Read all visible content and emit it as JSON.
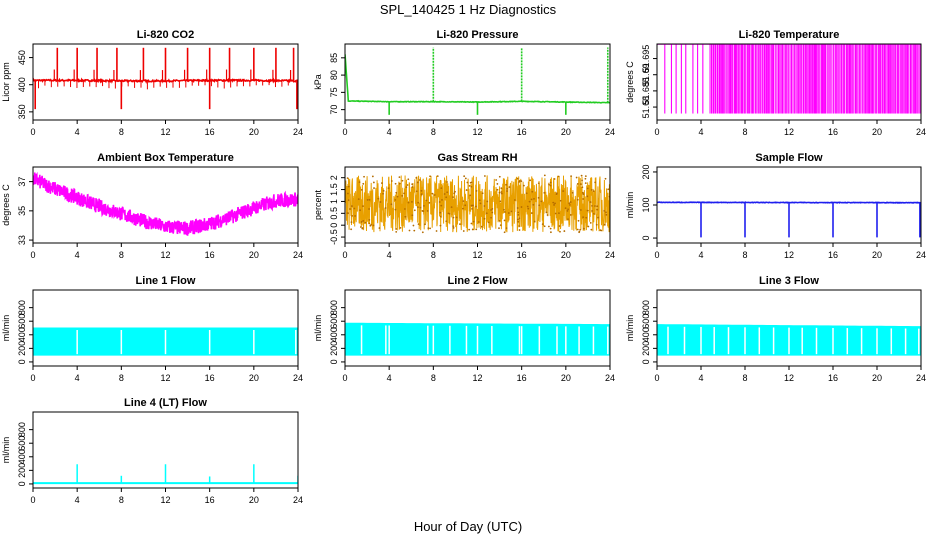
{
  "figure": {
    "title": "SPL_140425  1 Hz Diagnostics",
    "xlabel": "Hour of Day (UTC)"
  },
  "chart_data": [
    {
      "type": "line",
      "title": "Li-820 CO2",
      "xlabel": "",
      "ylabel": "Licor ppm",
      "color": "#ee0000",
      "xlim": [
        0,
        24
      ],
      "ylim": [
        335,
        475
      ],
      "xticks": [
        0,
        4,
        8,
        12,
        16,
        20,
        24
      ],
      "yticks": [
        350,
        400,
        450
      ],
      "series": [
        {
          "x": [
            0,
            4,
            8,
            12,
            16,
            20,
            24
          ],
          "y": [
            408,
            408,
            407,
            407,
            408,
            408,
            407
          ],
          "spikes_up_x": [
            2.2,
            4,
            5.8,
            7.6,
            10,
            12,
            14,
            16,
            17.8,
            20,
            22,
            23.6
          ],
          "spike_up_y": 468,
          "spikes_down_x": [
            0.2,
            8,
            16,
            23.9
          ],
          "spike_down_y": 355
        }
      ]
    },
    {
      "type": "line",
      "title": "Li-820 Pressure",
      "xlabel": "",
      "ylabel": "kPa",
      "color": "#22cc22",
      "xlim": [
        0,
        24
      ],
      "ylim": [
        67,
        89
      ],
      "xticks": [
        0,
        4,
        8,
        12,
        16,
        20,
        24
      ],
      "yticks": [
        70,
        75,
        80,
        85
      ],
      "series": [
        {
          "x": [
            0,
            0.3,
            4,
            8,
            12,
            16,
            20,
            24
          ],
          "y": [
            86,
            72.5,
            72.3,
            72.3,
            72.2,
            72.4,
            72.2,
            72
          ],
          "spikes_up_x": [
            8,
            16,
            23.8
          ],
          "spike_up_y": 88,
          "spikes_down_x": [
            4,
            12,
            20
          ],
          "spike_down_y": 68.5
        }
      ]
    },
    {
      "type": "line",
      "title": "Li-820 Temperature",
      "xlabel": "",
      "ylabel": "degrees C",
      "color": "#ff00ff",
      "xlim": [
        0,
        24
      ],
      "ylim": [
        51.676,
        51.6995
      ],
      "xticks": [
        0,
        4,
        8,
        12,
        16,
        20,
        24
      ],
      "yticks": [
        51.68,
        51.685,
        51.69,
        51.695
      ],
      "series": [
        {
          "x": [
            0,
            24
          ],
          "y": [
            51.678,
            51.6995
          ],
          "pattern": "rapid toggling between two levels"
        }
      ]
    },
    {
      "type": "line",
      "title": "Ambient Box Temperature",
      "xlabel": "",
      "ylabel": "degrees C",
      "color": "#ff00ff",
      "xlim": [
        0,
        24
      ],
      "ylim": [
        32.8,
        38
      ],
      "xticks": [
        0,
        4,
        8,
        12,
        16,
        20,
        24
      ],
      "yticks": [
        33,
        35,
        37
      ],
      "series": [
        {
          "x": [
            0,
            2,
            4,
            6,
            8,
            10,
            12,
            14,
            16,
            18,
            20,
            22,
            24
          ],
          "y": [
            37.2,
            36.5,
            35.9,
            35.3,
            34.8,
            34.3,
            33.9,
            33.8,
            34.1,
            34.6,
            35.2,
            35.7,
            35.8
          ],
          "band": 0.5
        }
      ]
    },
    {
      "type": "line",
      "title": "Gas Stream RH",
      "xlabel": "",
      "ylabel": "percent",
      "color": "#e8a000",
      "xlim": [
        0,
        24
      ],
      "ylim": [
        -0.75,
        2.45
      ],
      "xticks": [
        0,
        4,
        8,
        12,
        16,
        20,
        24
      ],
      "yticks": [
        -0.5,
        0.0,
        0.5,
        1.0,
        1.5,
        2.0
      ],
      "series": [
        {
          "x": [
            0,
            24
          ],
          "y": [
            0.9,
            0.9
          ],
          "band": 1.2
        }
      ]
    },
    {
      "type": "line",
      "title": "Sample Flow",
      "xlabel": "",
      "ylabel": "ml/min",
      "color": "#1f1fee",
      "xlim": [
        0,
        24
      ],
      "ylim": [
        -15,
        215
      ],
      "xticks": [
        0,
        4,
        8,
        12,
        16,
        20,
        24
      ],
      "yticks": [
        0,
        100,
        200
      ],
      "series": [
        {
          "x": [
            0,
            24
          ],
          "y": [
            108,
            107
          ],
          "spikes_down_x": [
            4,
            8,
            12,
            16,
            20,
            23.9
          ],
          "spike_down_y": 2
        }
      ]
    },
    {
      "type": "area",
      "title": "Line 1 Flow",
      "xlabel": "",
      "ylabel": "ml/min",
      "color": "#00ffff",
      "xlim": [
        0,
        24
      ],
      "ylim": [
        -60,
        1060
      ],
      "xticks": [
        0,
        4,
        8,
        12,
        16,
        20,
        24
      ],
      "yticks": [
        0,
        200,
        400,
        600,
        800
      ],
      "series": [
        {
          "x": [
            0,
            24
          ],
          "y_low": [
            100,
            100
          ],
          "y_high": [
            500,
            500
          ],
          "gaps_x": [
            4,
            8,
            12,
            16,
            20,
            23.8
          ]
        }
      ]
    },
    {
      "type": "area",
      "title": "Line 2 Flow",
      "xlabel": "",
      "ylabel": "ml/min",
      "color": "#00ffff",
      "xlim": [
        0,
        24
      ],
      "ylim": [
        -60,
        1060
      ],
      "xticks": [
        0,
        4,
        8,
        12,
        16,
        20,
        24
      ],
      "yticks": [
        0,
        200,
        400,
        600,
        800
      ],
      "series": [
        {
          "x": [
            0,
            24
          ],
          "y_low": [
            100,
            100
          ],
          "y_high": [
            570,
            550
          ],
          "gaps_x": [
            1.5,
            3.7,
            4,
            7.5,
            8,
            9.5,
            11,
            12,
            13.3,
            15.8,
            16,
            17.6,
            19.2,
            20,
            21.2,
            22.5,
            23.8
          ]
        }
      ]
    },
    {
      "type": "area",
      "title": "Line 3 Flow",
      "xlabel": "",
      "ylabel": "ml/min",
      "color": "#00ffff",
      "xlim": [
        0,
        24
      ],
      "ylim": [
        -60,
        1060
      ],
      "xticks": [
        0,
        4,
        8,
        12,
        16,
        20,
        24
      ],
      "yticks": [
        0,
        200,
        400,
        600,
        800
      ],
      "series": [
        {
          "x": [
            0,
            24
          ],
          "y_low": [
            100,
            100
          ],
          "y_high": [
            550,
            520
          ],
          "gaps_x": [
            1,
            2.5,
            4,
            5.2,
            6.5,
            8,
            9.3,
            10.6,
            12,
            13.2,
            14.5,
            16,
            17.3,
            18.6,
            20,
            21.3,
            22.6,
            23.8
          ]
        }
      ]
    },
    {
      "type": "line",
      "title": "Line 4 (LT) Flow",
      "xlabel": "",
      "ylabel": "ml/min",
      "color": "#00ffff",
      "xlim": [
        0,
        24
      ],
      "ylim": [
        -60,
        1060
      ],
      "xticks": [
        0,
        4,
        8,
        12,
        16,
        20,
        24
      ],
      "yticks": [
        0,
        200,
        400,
        600,
        800
      ],
      "series": [
        {
          "x": [
            0,
            24
          ],
          "y": [
            12,
            12
          ],
          "spikes_up_x": [
            4,
            8,
            12,
            16,
            20,
            24
          ],
          "spikes_up_y": [
            290,
            120,
            290,
            110,
            290,
            120
          ]
        }
      ]
    }
  ]
}
